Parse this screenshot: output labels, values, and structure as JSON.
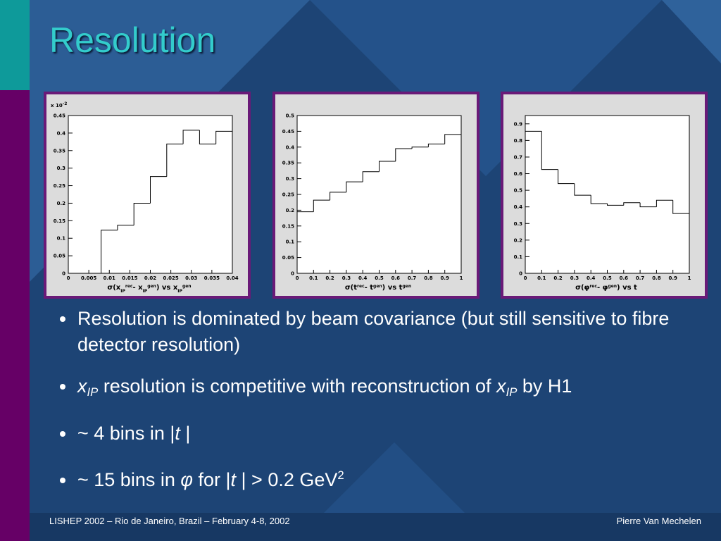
{
  "title": "Resolution",
  "chart_data": [
    {
      "type": "histogram",
      "multiplier": [
        {
          "text": "x 10"
        },
        {
          "text": "-2",
          "style": "sup"
        }
      ],
      "xlabel": [
        {
          "text": "σ(x"
        },
        {
          "text": "IP",
          "style": "sub"
        },
        {
          "text": "rec",
          "style": "sup"
        },
        {
          "text": "- x"
        },
        {
          "text": "IP",
          "style": "sub"
        },
        {
          "text": "gen",
          "style": "sup"
        },
        {
          "text": ") vs x"
        },
        {
          "text": "IP",
          "style": "sub"
        },
        {
          "text": "gen",
          "style": "sup"
        }
      ],
      "bins": [
        0,
        0.004,
        0.008,
        0.012,
        0.016,
        0.02,
        0.024,
        0.028,
        0.032,
        0.036,
        0.04
      ],
      "values": [
        0,
        0,
        0.123,
        0.137,
        0.2,
        0.276,
        0.369,
        0.408,
        0.369,
        0.405
      ],
      "xlim": [
        0,
        0.04
      ],
      "ylim": [
        0,
        0.45
      ],
      "xticks": [
        0,
        0.005,
        0.01,
        0.015,
        0.02,
        0.025,
        0.03,
        0.035,
        0.04
      ],
      "yticks": [
        0,
        0.05,
        0.1,
        0.15,
        0.2,
        0.25,
        0.3,
        0.35,
        0.4,
        0.45
      ],
      "color": "#000000"
    },
    {
      "type": "histogram",
      "xlabel": [
        {
          "text": "σ(t"
        },
        {
          "text": "rec",
          "style": "sup"
        },
        {
          "text": "- t"
        },
        {
          "text": "gen",
          "style": "sup"
        },
        {
          "text": ") vs t"
        },
        {
          "text": "gen",
          "style": "sup"
        }
      ],
      "bins": [
        0,
        0.1,
        0.2,
        0.3,
        0.4,
        0.5,
        0.6,
        0.7,
        0.8,
        0.9,
        1
      ],
      "values": [
        0.195,
        0.232,
        0.257,
        0.29,
        0.322,
        0.355,
        0.395,
        0.4,
        0.41,
        0.44
      ],
      "xlim": [
        0,
        1
      ],
      "ylim": [
        0,
        0.5
      ],
      "xticks": [
        0,
        0.1,
        0.2,
        0.3,
        0.4,
        0.5,
        0.6,
        0.7,
        0.8,
        0.9,
        1
      ],
      "yticks": [
        0,
        0.05,
        0.1,
        0.15,
        0.2,
        0.25,
        0.3,
        0.35,
        0.4,
        0.45,
        0.5
      ],
      "color": "#000000"
    },
    {
      "type": "histogram",
      "xlabel": [
        {
          "text": "σ(φ"
        },
        {
          "text": "rec",
          "style": "sup"
        },
        {
          "text": "- φ"
        },
        {
          "text": "gen",
          "style": "sup"
        },
        {
          "text": ") vs t"
        }
      ],
      "bins": [
        0,
        0.1,
        0.2,
        0.3,
        0.4,
        0.5,
        0.6,
        0.7,
        0.8,
        0.9,
        1
      ],
      "values": [
        0.855,
        0.625,
        0.54,
        0.47,
        0.42,
        0.41,
        0.425,
        0.4,
        0.44,
        0.36
      ],
      "xlim": [
        0,
        1
      ],
      "ylim": [
        0,
        0.95
      ],
      "xticks": [
        0,
        0.1,
        0.2,
        0.3,
        0.4,
        0.5,
        0.6,
        0.7,
        0.8,
        0.9,
        1
      ],
      "yticks": [
        0,
        0.1,
        0.2,
        0.3,
        0.4,
        0.5,
        0.6,
        0.7,
        0.8,
        0.9
      ],
      "color": "#000000"
    }
  ],
  "bullets": [
    [
      {
        "text": "Resolution is dominated by beam covariance (but still sensitive to fibre detector resolution)"
      }
    ],
    [
      {
        "text": "x",
        "style": "i"
      },
      {
        "text": "IP",
        "style": "isub"
      },
      {
        "text": " resolution is competitive with reconstruction of "
      },
      {
        "text": "x",
        "style": "i"
      },
      {
        "text": "IP",
        "style": "isub"
      },
      {
        "text": " by H1"
      }
    ],
    [
      {
        "text": "~ 4 bins in |"
      },
      {
        "text": "t",
        "style": "i"
      },
      {
        "text": " |"
      }
    ],
    [
      {
        "text": "~ 15 bins in "
      },
      {
        "text": "φ",
        "style": "i"
      },
      {
        "text": " for |"
      },
      {
        "text": "t",
        "style": "i"
      },
      {
        "text": " | > 0.2 GeV"
      },
      {
        "text": "2",
        "style": "sup"
      }
    ]
  ],
  "footer": {
    "left": "LISHEP 2002 – Rio de Janeiro, Brazil – February 4-8, 2002",
    "right": "Pierre Van Mechelen"
  }
}
